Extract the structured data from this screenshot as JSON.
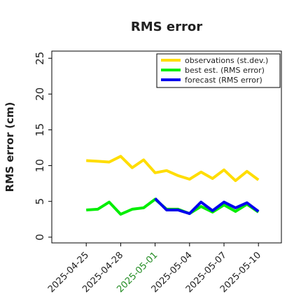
{
  "chart_data": {
    "type": "line",
    "title": "RMS error",
    "ylabel": "RMS error (cm)",
    "x": [
      "2025-04-25",
      "2025-04-26",
      "2025-04-27",
      "2025-04-28",
      "2025-04-29",
      "2025-04-30",
      "2025-05-01",
      "2025-05-02",
      "2025-05-03",
      "2025-05-04",
      "2025-05-05",
      "2025-05-06",
      "2025-05-07",
      "2025-05-08",
      "2025-05-09",
      "2025-05-10"
    ],
    "series": [
      {
        "name": "observations (st.dev.)",
        "color": "#ffdd00",
        "values": [
          10.7,
          10.6,
          10.5,
          11.3,
          9.7,
          10.8,
          9.0,
          9.3,
          8.6,
          8.1,
          9.1,
          8.2,
          9.4,
          7.9,
          9.2,
          8.0
        ]
      },
      {
        "name": "best est. (RMS error)",
        "color": "#00ee00",
        "values": [
          3.8,
          3.9,
          4.9,
          3.2,
          3.9,
          4.1,
          5.3,
          3.9,
          3.9,
          3.3,
          4.3,
          3.5,
          4.5,
          3.6,
          4.6,
          3.5
        ]
      },
      {
        "name": "forecast (RMS error)",
        "color": "#0000ee",
        "values": [
          null,
          null,
          null,
          null,
          null,
          null,
          5.4,
          3.8,
          3.8,
          3.3,
          4.9,
          3.7,
          4.9,
          4.1,
          4.8,
          3.6
        ]
      }
    ],
    "xlim": [
      "2025-04-22",
      "2025-05-12"
    ],
    "xticks": [
      "2025-04-25",
      "2025-04-28",
      "2025-05-01",
      "2025-05-04",
      "2025-05-07",
      "2025-05-10"
    ],
    "highlight_xtick": {
      "label": "2025-05-01",
      "color": "#228b22"
    },
    "ylim": [
      -0.8,
      26
    ],
    "yticks": [
      0,
      5,
      10,
      15,
      20,
      25
    ],
    "legend": "upper right",
    "grid": false
  }
}
